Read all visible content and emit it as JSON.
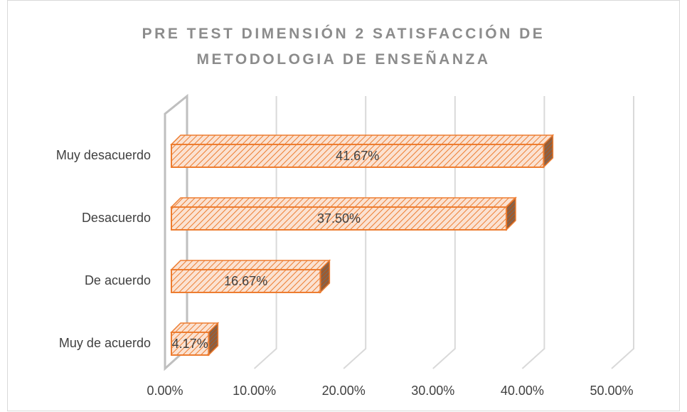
{
  "chart_data": {
    "type": "bar3d_horizontal",
    "title": "PRE TEST DIMENSIÓN 2 SATISFACCIÓN DE METODOLOGIA DE ENSEÑANZA",
    "categories": [
      "Muy  desacuerdo",
      "Desacuerdo",
      "De acuerdo",
      "Muy de acuerdo"
    ],
    "values": [
      41.67,
      37.5,
      16.67,
      4.17
    ],
    "value_labels": [
      "41.67%",
      "37.50%",
      "16.67%",
      "4.17%"
    ],
    "color": "#ed7d31",
    "xlim": [
      0,
      50
    ],
    "xticks": [
      {
        "value": 0,
        "label": "0.00%"
      },
      {
        "value": 10,
        "label": "10.00%"
      },
      {
        "value": 20,
        "label": "20.00%"
      },
      {
        "value": 30,
        "label": "30.00%"
      },
      {
        "value": 40,
        "label": "40.00%"
      },
      {
        "value": 50,
        "label": "50.00%"
      }
    ],
    "grid": true
  }
}
